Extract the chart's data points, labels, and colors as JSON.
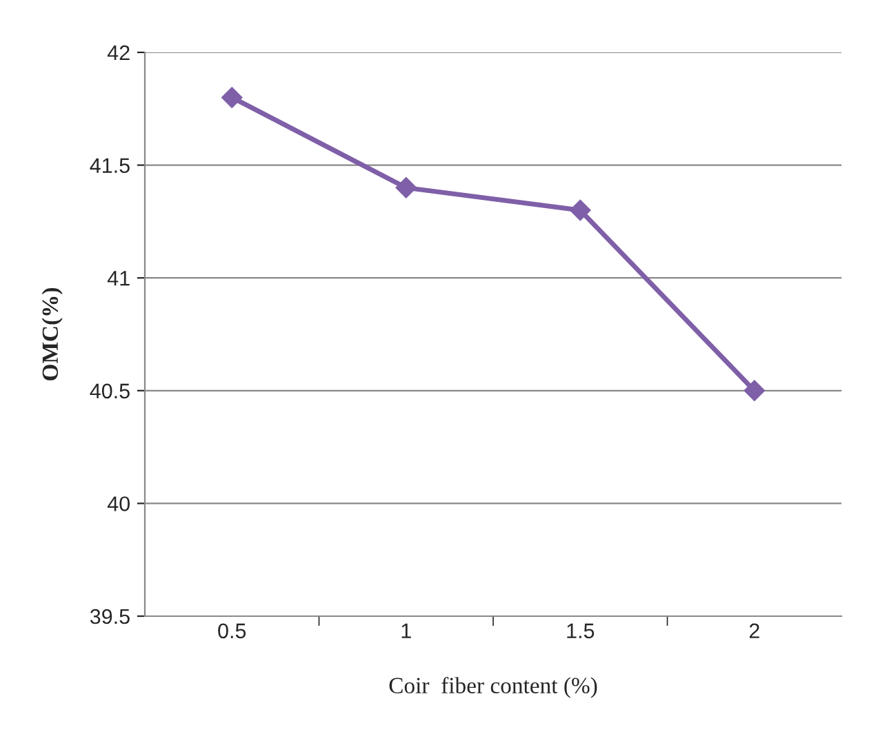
{
  "chart_data": {
    "type": "line",
    "xlabel": "Coir  fiber content (%)",
    "ylabel": "OMC(%)",
    "categories": [
      "0.5",
      "1",
      "1.5",
      "2"
    ],
    "series": [
      {
        "color": "#7f5fa8",
        "values": [
          41.8,
          41.4,
          41.3,
          40.5
        ]
      }
    ],
    "ylim": [
      39.5,
      42
    ],
    "yticks": [
      39.5,
      40,
      40.5,
      41,
      41.5,
      42
    ],
    "grid": "y",
    "marker": "diamond",
    "line_style": "solid",
    "legend": false
  }
}
